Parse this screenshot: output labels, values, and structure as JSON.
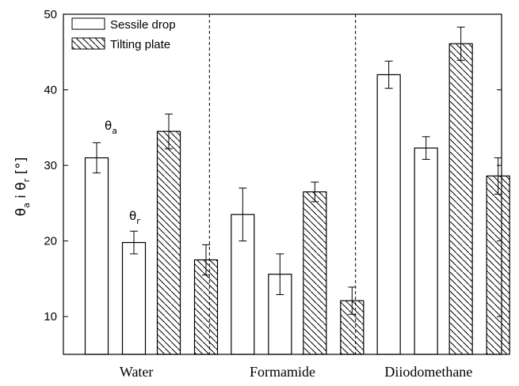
{
  "chart_data": {
    "type": "bar",
    "categories": [
      "Water",
      "Formamide",
      "Diiodomethane"
    ],
    "series": [
      {
        "name": "Sessile drop",
        "pattern": "solid",
        "bars": [
          {
            "category": "Water",
            "angle": "a",
            "value": 31.0,
            "err": 2.0
          },
          {
            "category": "Water",
            "angle": "r",
            "value": 19.8,
            "err": 1.5
          },
          {
            "category": "Formamide",
            "angle": "a",
            "value": 23.5,
            "err": 3.5
          },
          {
            "category": "Formamide",
            "angle": "r",
            "value": 15.6,
            "err": 2.7
          },
          {
            "category": "Diiodomethane",
            "angle": "a",
            "value": 42.0,
            "err": 1.8
          },
          {
            "category": "Diiodomethane",
            "angle": "r",
            "value": 32.3,
            "err": 1.5
          }
        ]
      },
      {
        "name": "Tilting plate",
        "pattern": "hatched",
        "bars": [
          {
            "category": "Water",
            "angle": "a",
            "value": 34.5,
            "err": 2.3
          },
          {
            "category": "Water",
            "angle": "r",
            "value": 17.5,
            "err": 2.0
          },
          {
            "category": "Formamide",
            "angle": "a",
            "value": 26.5,
            "err": 1.3
          },
          {
            "category": "Formamide",
            "angle": "r",
            "value": 12.1,
            "err": 1.8
          },
          {
            "category": "Diiodomethane",
            "angle": "a",
            "value": 46.1,
            "err": 2.2
          },
          {
            "category": "Diiodomethane",
            "angle": "r",
            "value": 28.6,
            "err": 2.4
          }
        ]
      }
    ],
    "ylabel": {
      "main1": "θ",
      "sub1": "a",
      "mid": " i ",
      "main2": "θ",
      "sub2": "r",
      "unit": " [°]"
    },
    "ylim": [
      5,
      50
    ],
    "yticks": [
      10,
      20,
      30,
      40,
      50
    ],
    "annotations": [
      {
        "symbol": "θ",
        "sub": "a"
      },
      {
        "symbol": "θ",
        "sub": "r"
      }
    ],
    "legend": {
      "position": "top-left"
    },
    "grid": false,
    "group_separators": "dashed"
  }
}
